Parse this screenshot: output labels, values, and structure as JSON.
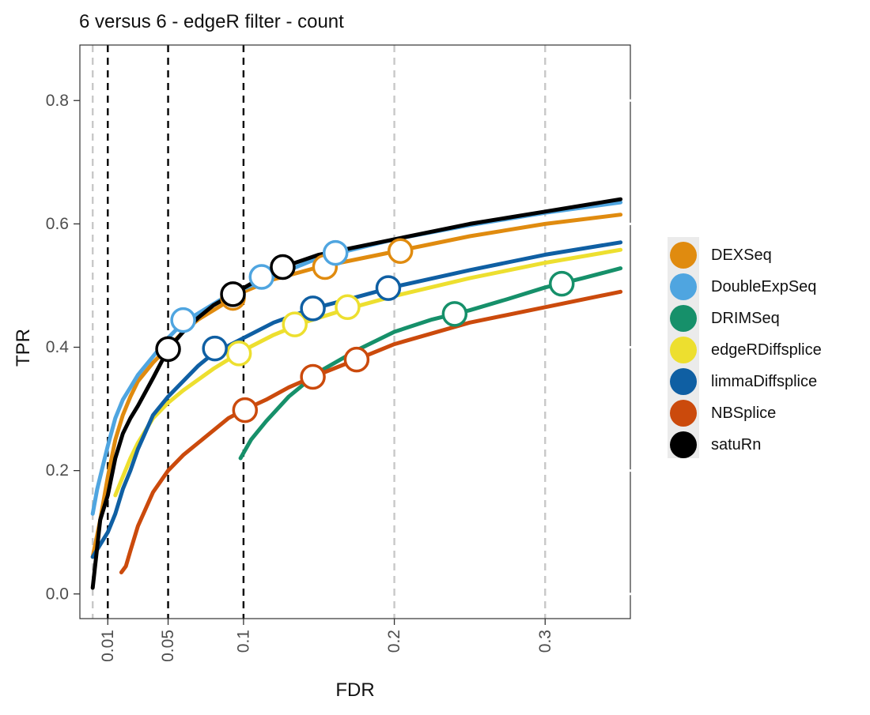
{
  "chart_data": {
    "type": "line",
    "title": "6 versus 6 - edgeR filter - count",
    "xlabel": "FDR",
    "ylabel": "TPR",
    "xlim": [
      -0.0085,
      0.3565
    ],
    "ylim": [
      -0.04,
      0.89
    ],
    "x_ticks": [
      0.01,
      0.05,
      0.1,
      0.2,
      0.3
    ],
    "x_tick_labels": [
      "0.01",
      "0.05",
      "0.1",
      "0.2",
      "0.3"
    ],
    "y_ticks": [
      0.0,
      0.2,
      0.4,
      0.6,
      0.8
    ],
    "y_tick_labels": [
      "0.0",
      "0.2",
      "0.4",
      "0.6",
      "0.8"
    ],
    "grid": false,
    "legend_placement": "right",
    "reference_lines": {
      "black_dashed_x": [
        0.01,
        0.05,
        0.1
      ],
      "grey_dashed_x": [
        0.0,
        0.2,
        0.3
      ]
    },
    "series": [
      {
        "name": "DEXSeq",
        "color": "#E08B0F",
        "x": [
          0.0,
          0.005,
          0.01,
          0.015,
          0.02,
          0.025,
          0.03,
          0.04,
          0.05,
          0.06,
          0.07,
          0.08,
          0.1,
          0.12,
          0.15,
          0.2,
          0.25,
          0.3,
          0.35
        ],
        "y": [
          0.06,
          0.12,
          0.19,
          0.25,
          0.29,
          0.32,
          0.345,
          0.375,
          0.4,
          0.425,
          0.445,
          0.46,
          0.49,
          0.51,
          0.53,
          0.555,
          0.58,
          0.6,
          0.615
        ],
        "points": [
          {
            "x": 0.093,
            "y": 0.48
          },
          {
            "x": 0.154,
            "y": 0.53
          },
          {
            "x": 0.204,
            "y": 0.556
          }
        ]
      },
      {
        "name": "DoubleExpSeq",
        "color": "#4FA5E0",
        "x": [
          0.0,
          0.003,
          0.006,
          0.01,
          0.015,
          0.02,
          0.025,
          0.03,
          0.04,
          0.05,
          0.06,
          0.07,
          0.08,
          0.09,
          0.1,
          0.12,
          0.15,
          0.2,
          0.25,
          0.3,
          0.35
        ],
        "y": [
          0.13,
          0.17,
          0.2,
          0.24,
          0.285,
          0.315,
          0.335,
          0.355,
          0.385,
          0.415,
          0.44,
          0.455,
          0.47,
          0.485,
          0.495,
          0.515,
          0.545,
          0.575,
          0.598,
          0.618,
          0.635
        ],
        "points": [
          {
            "x": 0.06,
            "y": 0.444
          },
          {
            "x": 0.112,
            "y": 0.514
          },
          {
            "x": 0.161,
            "y": 0.553
          }
        ]
      },
      {
        "name": "DRIMSeq",
        "color": "#16906A",
        "x": [
          0.098,
          0.105,
          0.115,
          0.13,
          0.15,
          0.175,
          0.2,
          0.225,
          0.25,
          0.275,
          0.3,
          0.325,
          0.35
        ],
        "y": [
          0.22,
          0.25,
          0.28,
          0.32,
          0.36,
          0.395,
          0.425,
          0.445,
          0.46,
          0.478,
          0.497,
          0.512,
          0.528
        ],
        "points": [
          {
            "x": 0.24,
            "y": 0.454
          },
          {
            "x": 0.311,
            "y": 0.503
          }
        ]
      },
      {
        "name": "edgeRDiffsplice",
        "color": "#EDDF2F",
        "x": [
          0.015,
          0.02,
          0.025,
          0.03,
          0.04,
          0.05,
          0.06,
          0.08,
          0.1,
          0.12,
          0.14,
          0.17,
          0.2,
          0.25,
          0.3,
          0.35
        ],
        "y": [
          0.16,
          0.19,
          0.22,
          0.245,
          0.285,
          0.31,
          0.33,
          0.365,
          0.395,
          0.42,
          0.44,
          0.463,
          0.483,
          0.512,
          0.537,
          0.558
        ],
        "points": [
          {
            "x": 0.097,
            "y": 0.39
          },
          {
            "x": 0.134,
            "y": 0.437
          },
          {
            "x": 0.169,
            "y": 0.465
          }
        ]
      },
      {
        "name": "limmaDiffsplice",
        "color": "#0F5FA3",
        "x": [
          0.0,
          0.005,
          0.01,
          0.015,
          0.02,
          0.025,
          0.03,
          0.04,
          0.05,
          0.06,
          0.07,
          0.08,
          0.1,
          0.12,
          0.145,
          0.17,
          0.2,
          0.25,
          0.3,
          0.35
        ],
        "y": [
          0.06,
          0.08,
          0.1,
          0.13,
          0.17,
          0.2,
          0.235,
          0.29,
          0.32,
          0.345,
          0.37,
          0.39,
          0.415,
          0.44,
          0.462,
          0.478,
          0.498,
          0.525,
          0.55,
          0.57
        ],
        "points": [
          {
            "x": 0.081,
            "y": 0.398
          },
          {
            "x": 0.146,
            "y": 0.463
          },
          {
            "x": 0.196,
            "y": 0.496
          }
        ]
      },
      {
        "name": "NBSplice",
        "color": "#CB4A0C",
        "x": [
          0.019,
          0.022,
          0.025,
          0.03,
          0.04,
          0.05,
          0.06,
          0.075,
          0.09,
          0.1,
          0.115,
          0.13,
          0.146,
          0.175,
          0.2,
          0.25,
          0.3,
          0.35
        ],
        "y": [
          0.035,
          0.045,
          0.07,
          0.11,
          0.165,
          0.2,
          0.225,
          0.255,
          0.285,
          0.298,
          0.315,
          0.335,
          0.352,
          0.38,
          0.405,
          0.44,
          0.465,
          0.49
        ],
        "points": [
          {
            "x": 0.101,
            "y": 0.298
          },
          {
            "x": 0.146,
            "y": 0.352
          },
          {
            "x": 0.175,
            "y": 0.38
          }
        ]
      },
      {
        "name": "satuRn",
        "color": "#000000",
        "x": [
          0.0,
          0.005,
          0.01,
          0.015,
          0.02,
          0.025,
          0.03,
          0.04,
          0.05,
          0.06,
          0.07,
          0.08,
          0.093,
          0.11,
          0.126,
          0.15,
          0.2,
          0.25,
          0.3,
          0.35
        ],
        "y": [
          0.01,
          0.12,
          0.16,
          0.22,
          0.26,
          0.285,
          0.305,
          0.35,
          0.397,
          0.425,
          0.448,
          0.468,
          0.486,
          0.51,
          0.53,
          0.55,
          0.575,
          0.6,
          0.62,
          0.64
        ],
        "points": [
          {
            "x": 0.05,
            "y": 0.397
          },
          {
            "x": 0.093,
            "y": 0.486
          },
          {
            "x": 0.126,
            "y": 0.53
          }
        ]
      }
    ]
  }
}
